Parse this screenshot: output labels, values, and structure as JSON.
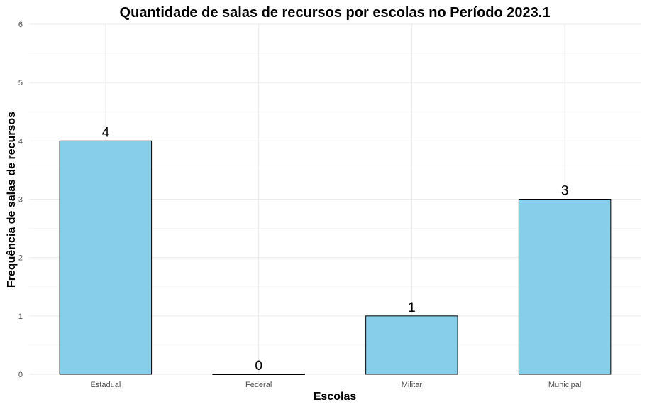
{
  "chart_data": {
    "type": "bar",
    "title": "Quantidade de salas de recursos por escolas no Período 2023.1",
    "xlabel": "Escolas",
    "ylabel": "Frequência de salas de recursos",
    "categories": [
      "Estadual",
      "Federal",
      "Militar",
      "Municipal"
    ],
    "values": [
      4,
      0,
      1,
      3
    ],
    "ylim": [
      0,
      6
    ],
    "yticks": [
      0,
      1,
      2,
      3,
      4,
      5,
      6
    ],
    "grid": true,
    "legend": "none",
    "bar_color": "#87CEEB",
    "bar_border_color": "#000000"
  }
}
